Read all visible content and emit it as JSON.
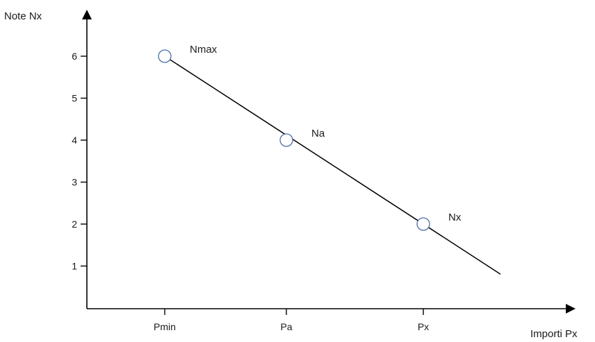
{
  "chart_data": {
    "type": "line",
    "ylabel": "Note Nx",
    "xlabel": "Importi Px",
    "y_ticks": [
      "1",
      "2",
      "3",
      "4",
      "5",
      "6"
    ],
    "x_ticks": [
      "Pmin",
      "Pa",
      "Px"
    ],
    "ylim": [
      0,
      7
    ],
    "series": [
      {
        "x": [
          "Pmin",
          "Pa",
          "Px"
        ],
        "values": [
          6,
          4,
          2
        ],
        "point_labels": [
          "Nmax",
          "Na",
          "Nx"
        ]
      }
    ],
    "grid": false,
    "legend": "none",
    "colors": {
      "line": "#000000",
      "marker_stroke": "#4a6fa5",
      "marker_fill": "#ffffff"
    }
  }
}
